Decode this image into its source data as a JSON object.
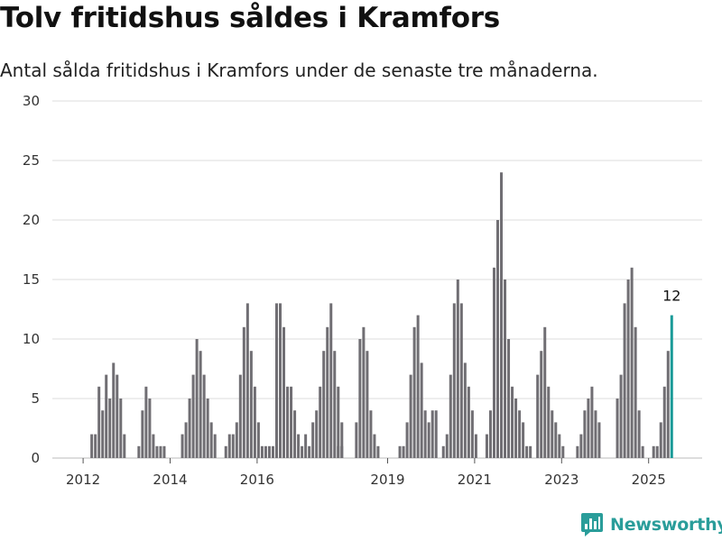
{
  "title": "Tolv fritidshus såldes i Kramfors",
  "subtitle": "Antal sålda fritidshus i Kramfors under de senaste tre månaderna.",
  "brand": {
    "name": "Newsworthy",
    "icon": "bar-chart-speech-icon",
    "color": "#2a9d9a"
  },
  "colors": {
    "bar": "#706e73",
    "highlight": "#1a9b98",
    "grid": "#dddddd"
  },
  "chart_data": {
    "type": "bar",
    "ylim": [
      0,
      30
    ],
    "y_ticks": [
      "0",
      "5",
      "10",
      "15",
      "20",
      "25",
      "30"
    ],
    "x_ticks": [
      "2012",
      "2014",
      "2016",
      "2019",
      "2021",
      "2023",
      "2025"
    ],
    "grid": true,
    "highlight_label": "12",
    "series": [
      {
        "start": 2012.167,
        "values": [
          2,
          2,
          6,
          4,
          7,
          5,
          8,
          7,
          5,
          2
        ]
      },
      {
        "start": 2013.25,
        "values": [
          1,
          4,
          6,
          5,
          2,
          1,
          1,
          1
        ]
      },
      {
        "start": 2014.25,
        "values": [
          2,
          3,
          5,
          7,
          10,
          9,
          7,
          5,
          3,
          2
        ]
      },
      {
        "start": 2015.25,
        "values": [
          1,
          2,
          2,
          3,
          7,
          11,
          13,
          9,
          6,
          3,
          1,
          1,
          1,
          1,
          1
        ]
      },
      {
        "start": 2016.417,
        "values": [
          13,
          13,
          11,
          6,
          6,
          4,
          2,
          1,
          2,
          1,
          3,
          4,
          6,
          9,
          11,
          13,
          9,
          6,
          3
        ]
      },
      {
        "start": 2017.833,
        "values": [
          1,
          1
        ]
      },
      {
        "start": 2018.25,
        "values": [
          3,
          10,
          11,
          9,
          4,
          2,
          1
        ]
      },
      {
        "start": 2019.25,
        "values": [
          1,
          1,
          3,
          7,
          11,
          12,
          8,
          4,
          3,
          4,
          4
        ]
      },
      {
        "start": 2020.25,
        "values": [
          1,
          2,
          7,
          13,
          15,
          13,
          8,
          6,
          4,
          2
        ]
      },
      {
        "start": 2021.25,
        "values": [
          2,
          4,
          16,
          20,
          24,
          15,
          10,
          6,
          5,
          4,
          3,
          1,
          1
        ]
      },
      {
        "start": 2022.417,
        "values": [
          7,
          9,
          11,
          6,
          4,
          3,
          2,
          1
        ]
      },
      {
        "start": 2023.333,
        "values": [
          1,
          2,
          4,
          5,
          6,
          4,
          3
        ]
      },
      {
        "start": 2024.25,
        "values": [
          5,
          7,
          13,
          15,
          16,
          11,
          4,
          1
        ]
      },
      {
        "start": 2025.083,
        "values": [
          1,
          1,
          3,
          6,
          9,
          12
        ]
      }
    ]
  }
}
